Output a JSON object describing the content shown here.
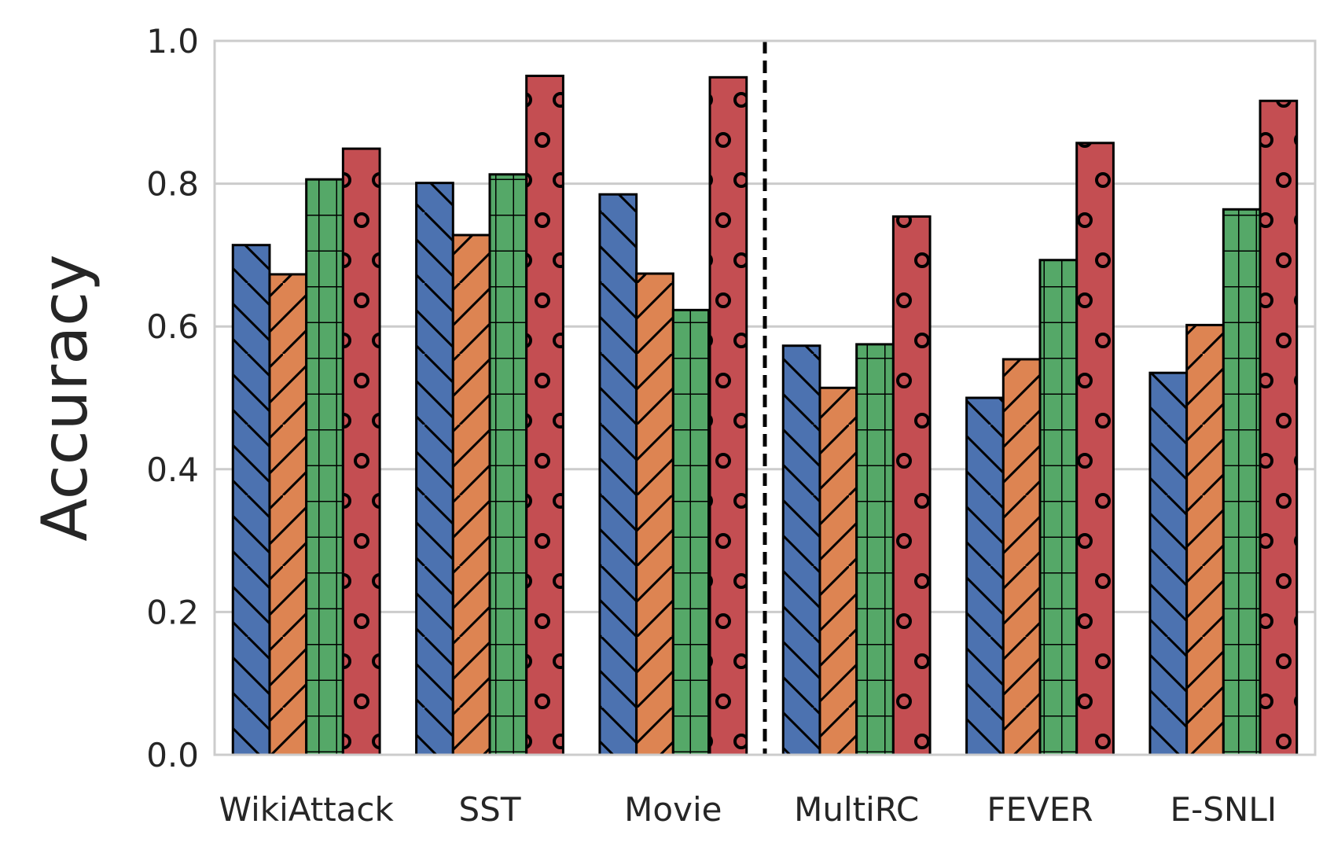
{
  "chart_data": {
    "type": "bar",
    "title": "",
    "xlabel": "",
    "ylabel": "Accuracy",
    "ylim": [
      0,
      1.0
    ],
    "yticks": [
      "0.0",
      "0.2",
      "0.4",
      "0.6",
      "0.8",
      "1.0"
    ],
    "grid": true,
    "legend": "none",
    "separator_after_category": "Movie",
    "categories": [
      "WikiAttack",
      "SST",
      "Movie",
      "MultiRC",
      "FEVER",
      "E-SNLI"
    ],
    "series": [
      {
        "name": "series-1",
        "color": "#4c72b0",
        "pattern": "backslash",
        "values": [
          0.714,
          0.801,
          0.785,
          0.573,
          0.5,
          0.535
        ]
      },
      {
        "name": "series-2",
        "color": "#dd8452",
        "pattern": "slash",
        "values": [
          0.673,
          0.728,
          0.674,
          0.514,
          0.554,
          0.602
        ]
      },
      {
        "name": "series-3",
        "color": "#55a868",
        "pattern": "grid",
        "values": [
          0.806,
          0.813,
          0.623,
          0.575,
          0.693,
          0.764
        ]
      },
      {
        "name": "series-4",
        "color": "#c44e52",
        "pattern": "circles",
        "values": [
          0.849,
          0.951,
          0.949,
          0.754,
          0.857,
          0.916
        ]
      }
    ]
  }
}
